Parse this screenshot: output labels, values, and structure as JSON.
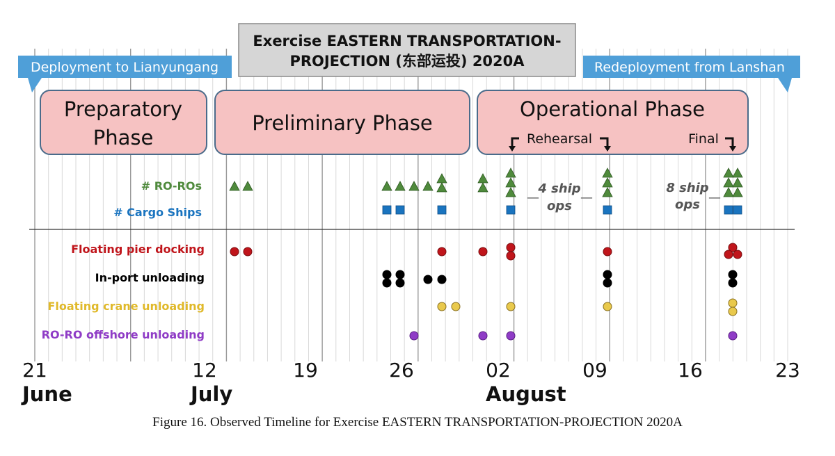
{
  "title": "Exercise EASTERN TRANSPORTATION-PROJECTION (东部运投) 2020A",
  "title_lines": [
    "Exercise EASTERN TRANSPORTATION-",
    "PROJECTION (东部运投) 2020A"
  ],
  "banners": {
    "left": "Deployment to Lianyungang",
    "right": "Redeployment from Lanshan"
  },
  "phases": {
    "preparatory": [
      "Preparatory",
      "Phase"
    ],
    "preliminary": "Preliminary Phase",
    "operational": "Operational Phase"
  },
  "markers": {
    "rehearsal": "Rehearsal",
    "final": "Final"
  },
  "annotations": {
    "four_ship": [
      "4 ship",
      "ops"
    ],
    "eight_ship": [
      "8 ship",
      "ops"
    ]
  },
  "rows": {
    "roros": "# RO-ROs",
    "cargo": "# Cargo Ships",
    "pier": "Floating pier docking",
    "inport": "In-port unloading",
    "crane": "Floating crane unloading",
    "offshore": "RO-RO offshore unloading"
  },
  "colors": {
    "roro": "#4f8a3c",
    "cargo": "#1a74bf",
    "pier": "#c0151b",
    "inport": "#000000",
    "crane": "#e9c94c",
    "offshore": "#8f3cc6",
    "phase_fill": "#f6c2c2",
    "phase_border": "#4a6b8a",
    "banner": "#4f9fd8",
    "title_box": "#d6d6d6"
  },
  "axis": {
    "ticks": [
      "21",
      "12",
      "19",
      "26",
      "02",
      "09",
      "16",
      "23"
    ],
    "months": [
      "June",
      "July",
      "August"
    ]
  },
  "caption": "Figure 16. Observed Timeline for Exercise EASTERN TRANSPORTATION-PROJECTION 2020A"
}
